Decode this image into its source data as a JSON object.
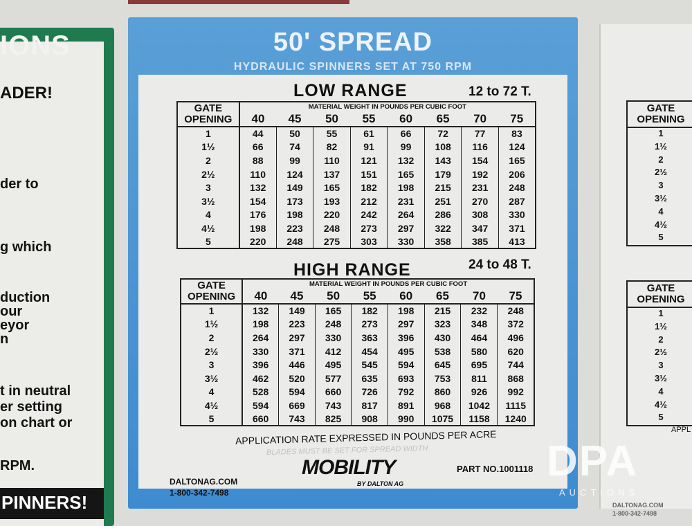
{
  "left_sign": {
    "title": "IONS",
    "lines": [
      "ADER!",
      "der to",
      "g which",
      "duction\nour\neyor\nn",
      "t in neutral\ner setting\non chart or",
      "RPM."
    ],
    "black_banner": "PINNERS!",
    "border_color": "#1f7a4f"
  },
  "main_sign": {
    "title": "50' SPREAD",
    "subtitle": "HYDRAULIC SPINNERS SET AT 750 RPM",
    "border_color": "#3f8bd0",
    "gate_header": "GATE OPENING",
    "weight_header": "MATERIAL WEIGHT IN POUNDS PER CUBIC FOOT",
    "weights": [
      "40",
      "45",
      "50",
      "55",
      "60",
      "65",
      "70",
      "75"
    ],
    "gates": [
      "1",
      "1½",
      "2",
      "2½",
      "3",
      "3½",
      "4",
      "4½",
      "5"
    ],
    "low_range": {
      "title": "LOW RANGE",
      "tons": "12 to 72 T.",
      "rows": [
        [
          "44",
          "50",
          "55",
          "61",
          "66",
          "72",
          "77",
          "83"
        ],
        [
          "66",
          "74",
          "82",
          "91",
          "99",
          "108",
          "116",
          "124"
        ],
        [
          "88",
          "99",
          "110",
          "121",
          "132",
          "143",
          "154",
          "165"
        ],
        [
          "110",
          "124",
          "137",
          "151",
          "165",
          "179",
          "192",
          "206"
        ],
        [
          "132",
          "149",
          "165",
          "182",
          "198",
          "215",
          "231",
          "248"
        ],
        [
          "154",
          "173",
          "193",
          "212",
          "231",
          "251",
          "270",
          "287"
        ],
        [
          "176",
          "198",
          "220",
          "242",
          "264",
          "286",
          "308",
          "330"
        ],
        [
          "198",
          "223",
          "248",
          "273",
          "297",
          "322",
          "347",
          "371"
        ],
        [
          "220",
          "248",
          "275",
          "303",
          "330",
          "358",
          "385",
          "413"
        ]
      ]
    },
    "high_range": {
      "title": "HIGH RANGE",
      "tons": "24 to 48 T.",
      "rows": [
        [
          "132",
          "149",
          "165",
          "182",
          "198",
          "215",
          "232",
          "248"
        ],
        [
          "198",
          "223",
          "248",
          "273",
          "297",
          "323",
          "348",
          "372"
        ],
        [
          "264",
          "297",
          "330",
          "363",
          "396",
          "430",
          "464",
          "496"
        ],
        [
          "330",
          "371",
          "412",
          "454",
          "495",
          "538",
          "580",
          "620"
        ],
        [
          "396",
          "446",
          "495",
          "545",
          "594",
          "645",
          "695",
          "744"
        ],
        [
          "462",
          "520",
          "577",
          "635",
          "693",
          "753",
          "811",
          "868"
        ],
        [
          "528",
          "594",
          "660",
          "726",
          "792",
          "860",
          "926",
          "992"
        ],
        [
          "594",
          "669",
          "743",
          "817",
          "891",
          "968",
          "1042",
          "1115"
        ],
        [
          "660",
          "743",
          "825",
          "908",
          "990",
          "1075",
          "1158",
          "1240"
        ]
      ]
    },
    "application_note": "APPLICATION RATE EXPRESSED IN POUNDS PER ACRE",
    "blades_note": "BLADES MUST BE SET FOR SPREAD WIDTH",
    "website": "DALTONAG.COM",
    "phone": "1-800-342-7498",
    "logo": "MOBILITY",
    "logo_sub": "BY DALTON AG",
    "part_no": "PART NO.1001118"
  },
  "right_sign": {
    "gate_header": "GATE OPENING",
    "gates": [
      "1",
      "1½",
      "2",
      "2½",
      "3",
      "3½",
      "4",
      "4½",
      "5"
    ],
    "appl": "APPL",
    "website": "DALTONAG.COM",
    "phone": "1-800-342-7498"
  },
  "watermark": {
    "brand": "DPA",
    "sub": "AUCTIONS"
  }
}
